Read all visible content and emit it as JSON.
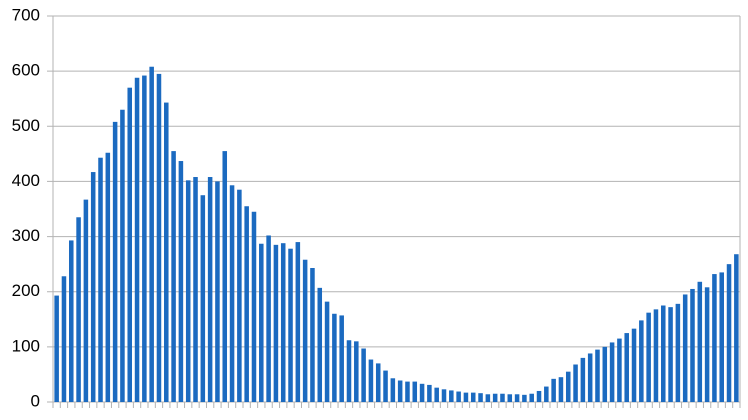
{
  "chart_data": {
    "type": "bar",
    "categories": [
      null,
      null,
      null,
      null,
      null,
      null,
      null,
      null,
      null,
      null,
      null,
      null,
      null,
      null,
      null,
      null,
      null,
      null,
      null,
      null,
      null,
      null,
      null,
      null,
      null,
      null,
      null,
      null,
      null,
      null,
      null,
      null,
      null,
      null,
      null,
      null,
      null,
      null,
      null,
      null,
      null,
      null,
      null,
      null,
      null,
      null,
      null,
      null,
      null,
      null,
      null,
      null,
      null,
      null,
      null,
      null,
      null,
      null,
      null,
      null,
      null,
      null,
      null,
      null,
      null,
      null,
      null,
      null,
      null,
      null,
      null,
      null,
      null,
      null,
      null,
      null,
      null,
      null,
      null,
      null,
      null,
      null,
      null,
      null,
      null,
      null,
      null,
      null,
      null,
      null,
      null,
      null,
      null,
      null
    ],
    "values": [
      193,
      228,
      293,
      335,
      367,
      417,
      443,
      452,
      508,
      530,
      570,
      588,
      592,
      608,
      595,
      543,
      455,
      437,
      402,
      408,
      375,
      408,
      400,
      455,
      393,
      385,
      355,
      345,
      287,
      302,
      285,
      288,
      278,
      290,
      258,
      243,
      207,
      182,
      160,
      157,
      112,
      110,
      97,
      77,
      70,
      57,
      43,
      39,
      37,
      37,
      33,
      31,
      26,
      23,
      21,
      19,
      17,
      17,
      16,
      14,
      15,
      15,
      14,
      14,
      13,
      15,
      20,
      28,
      42,
      45,
      55,
      68,
      80,
      88,
      95,
      100,
      108,
      115,
      125,
      133,
      148,
      162,
      168,
      175,
      172,
      178,
      195,
      205,
      218,
      208,
      232,
      235,
      250,
      268
    ],
    "color": "#1b6ac0",
    "ylim": [
      0,
      700
    ],
    "yticks": [
      0,
      100,
      200,
      300,
      400,
      500,
      600,
      700
    ],
    "grid": true
  }
}
